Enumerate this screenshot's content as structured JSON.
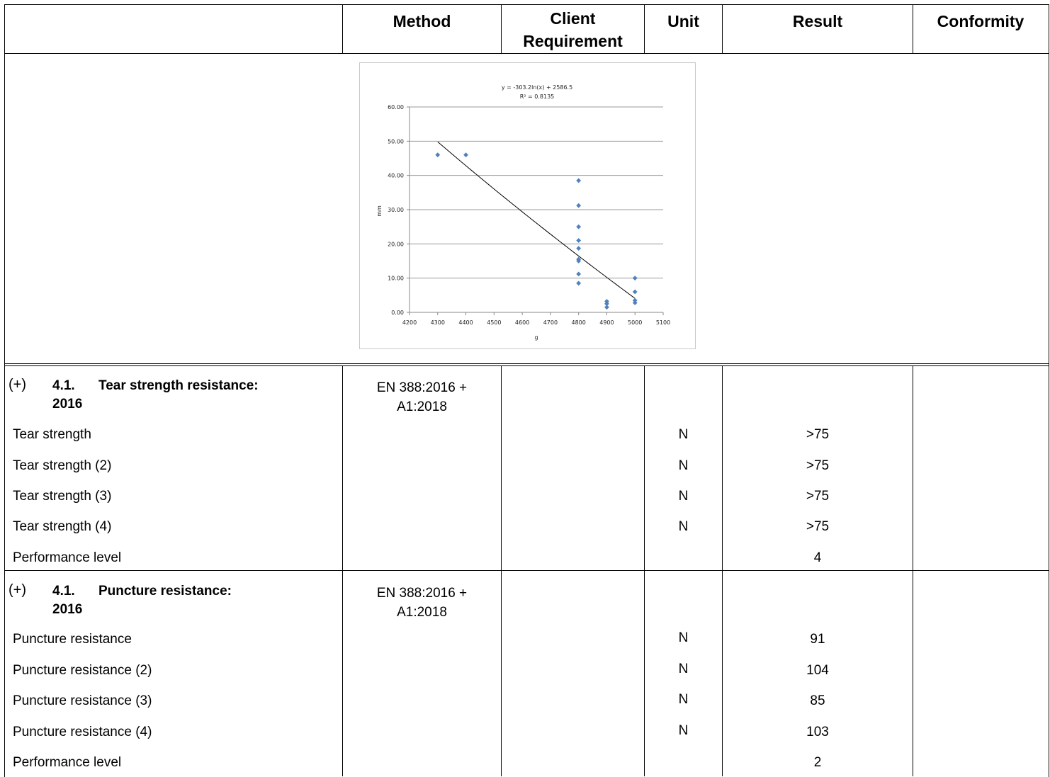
{
  "header": {
    "method": "Method",
    "client_requirement": "Client\nRequirement",
    "unit": "Unit",
    "result": "Result",
    "conformity": "Conformity"
  },
  "chart_data": {
    "type": "scatter",
    "equation_line1": "y = -303.2ln(x) + 2586.5",
    "equation_line2": "R² = 0.8135",
    "xlabel": "g",
    "ylabel": "mm",
    "xlim": [
      4200,
      5100
    ],
    "ylim": [
      0,
      60
    ],
    "x_ticks": [
      "4200",
      "4300",
      "4400",
      "4500",
      "4600",
      "4700",
      "4800",
      "4900",
      "5000",
      "5100"
    ],
    "y_ticks": [
      "0.00",
      "10.00",
      "20.00",
      "30.00",
      "40.00",
      "50.00",
      "60.00"
    ],
    "grid": true,
    "marker_color": "#4f81bd",
    "points": [
      {
        "x": 4300,
        "y": 46.0
      },
      {
        "x": 4400,
        "y": 46.0
      },
      {
        "x": 4800,
        "y": 38.5
      },
      {
        "x": 4800,
        "y": 31.2
      },
      {
        "x": 4800,
        "y": 25.0
      },
      {
        "x": 4800,
        "y": 21.0
      },
      {
        "x": 4800,
        "y": 18.7
      },
      {
        "x": 4800,
        "y": 15.5
      },
      {
        "x": 4800,
        "y": 15.0
      },
      {
        "x": 4800,
        "y": 11.2
      },
      {
        "x": 4800,
        "y": 8.5
      },
      {
        "x": 4900,
        "y": 3.2
      },
      {
        "x": 4900,
        "y": 2.5
      },
      {
        "x": 4900,
        "y": 1.5
      },
      {
        "x": 5000,
        "y": 10.0
      },
      {
        "x": 5000,
        "y": 6.0
      },
      {
        "x": 5000,
        "y": 3.5
      },
      {
        "x": 5000,
        "y": 2.8
      }
    ],
    "trendline": {
      "a": -303.2,
      "b": 2586.5,
      "x_from": 4300,
      "x_to": 5000
    }
  },
  "sections": [
    {
      "plus": "(+)",
      "number": "4.1.",
      "title": "Tear strength resistance:",
      "year": "2016",
      "method_line1": "EN 388:2016 +",
      "method_line2": "A1:2018",
      "rows": [
        {
          "label": "Tear strength",
          "unit": "N",
          "result": ">75"
        },
        {
          "label": "Tear strength (2)",
          "unit": "N",
          "result": ">75"
        },
        {
          "label": "Tear strength (3)",
          "unit": "N",
          "result": ">75"
        },
        {
          "label": "Tear strength (4)",
          "unit": "N",
          "result": ">75"
        },
        {
          "label": "Performance level",
          "unit": "",
          "result": "4"
        }
      ]
    },
    {
      "plus": "(+)",
      "number": "4.1.",
      "title": "Puncture resistance:",
      "year": "2016",
      "method_line1": "EN 388:2016 +",
      "method_line2": "A1:2018",
      "rows": [
        {
          "label": "Puncture resistance",
          "unit": "N",
          "result": "91"
        },
        {
          "label": "Puncture resistance (2)",
          "unit": "N",
          "result": "104"
        },
        {
          "label": "Puncture resistance (3)",
          "unit": "N",
          "result": "85"
        },
        {
          "label": "Puncture resistance (4)",
          "unit": "N",
          "result": "103"
        },
        {
          "label": "Performance level",
          "unit": "",
          "result": "2"
        }
      ]
    }
  ]
}
